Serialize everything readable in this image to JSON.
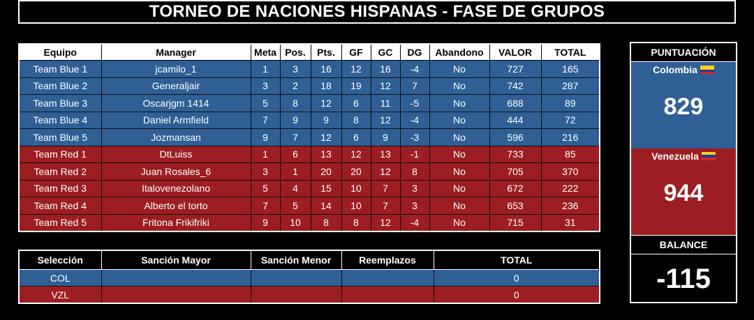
{
  "title": "TORNEO DE NACIONES HISPANAS  - FASE DE GRUPOS",
  "main_table": {
    "headers": [
      "Equipo",
      "Manager",
      "Meta",
      "Pos.",
      "Pts.",
      "GF",
      "GC",
      "DG",
      "Abandono",
      "VALOR",
      "TOTAL"
    ],
    "rows": [
      [
        "Team Blue 1",
        "jcamilo_1",
        "1",
        "3",
        "16",
        "12",
        "16",
        "-4",
        "No",
        "727",
        "165"
      ],
      [
        "Team Blue 2",
        "Generaljair",
        "3",
        "2",
        "18",
        "19",
        "12",
        "7",
        "No",
        "742",
        "287"
      ],
      [
        "Team Blue 3",
        "Oscarjgm 1414",
        "5",
        "8",
        "12",
        "6",
        "11",
        "-5",
        "No",
        "688",
        "89"
      ],
      [
        "Team Blue 4",
        "Daniel Armfield",
        "7",
        "9",
        "9",
        "8",
        "12",
        "-4",
        "No",
        "444",
        "72"
      ],
      [
        "Team Blue 5",
        "Jozmansan",
        "9",
        "7",
        "12",
        "6",
        "9",
        "-3",
        "No",
        "596",
        "216"
      ],
      [
        "Team Red 1",
        "DtLuiss",
        "1",
        "6",
        "13",
        "12",
        "13",
        "-1",
        "No",
        "733",
        "85"
      ],
      [
        "Team Red 2",
        "Juan Rosales_6",
        "3",
        "1",
        "20",
        "20",
        "12",
        "8",
        "No",
        "705",
        "370"
      ],
      [
        "Team Red 3",
        "Italovenezolano",
        "5",
        "4",
        "15",
        "10",
        "7",
        "3",
        "No",
        "672",
        "222"
      ],
      [
        "Team Red 4",
        "Alberto el torto",
        "7",
        "5",
        "14",
        "10",
        "7",
        "3",
        "No",
        "653",
        "236"
      ],
      [
        "Team Red 5",
        "Fritona Frikifriki",
        "9",
        "10",
        "8",
        "8",
        "12",
        "-4",
        "No",
        "715",
        "31"
      ]
    ]
  },
  "bottom_table": {
    "headers": [
      "Selección",
      "Sanción Mayor",
      "Sanción Menor",
      "Reemplazos",
      "TOTAL"
    ],
    "rows": [
      [
        "COL",
        "",
        "",
        "",
        "0"
      ],
      [
        "VZL",
        "",
        "",
        "",
        "0"
      ]
    ]
  },
  "panel": {
    "header": "PUNTUACIÓN",
    "team1": {
      "name": "Colombia",
      "score": "829",
      "flag": "colombia-flag-icon"
    },
    "team2": {
      "name": "Venezuela",
      "score": "944",
      "flag": "venezuela-flag-icon"
    },
    "balance_label": "BALANCE",
    "balance_value": "-115"
  },
  "colors": {
    "blue": "#2f5f95",
    "red": "#9c1e22",
    "background": "#000000"
  }
}
